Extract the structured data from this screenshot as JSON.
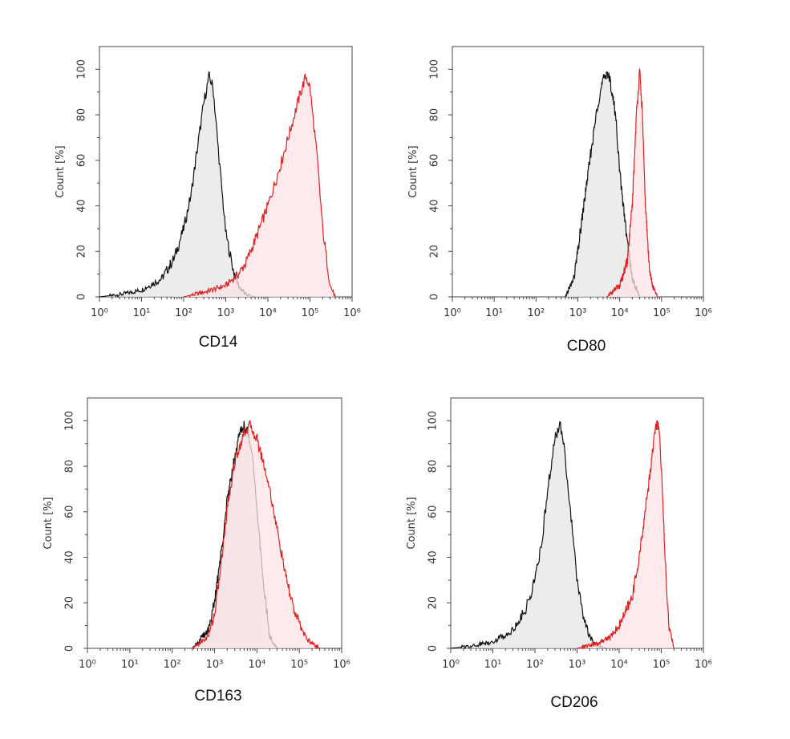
{
  "chart_data": [
    {
      "type": "area",
      "xlabel": "CD14",
      "ylabel": "Count [%]",
      "xscale": "log",
      "xlim": [
        1,
        1000000
      ],
      "ylim": [
        0,
        110
      ],
      "xticks": [
        1,
        10,
        100,
        1000,
        10000,
        100000,
        1000000
      ],
      "yticks": [
        0,
        20,
        40,
        60,
        80,
        100
      ],
      "series": [
        {
          "color": "#111111",
          "fill": "#e6e6e6",
          "x": [
            1,
            3,
            10,
            30,
            60,
            100,
            150,
            200,
            300,
            400,
            500,
            700,
            1000,
            1500,
            2000,
            3000,
            5000
          ],
          "y": [
            0,
            1,
            3,
            8,
            17,
            30,
            45,
            62,
            85,
            97,
            92,
            60,
            28,
            12,
            5,
            1,
            0
          ]
        },
        {
          "color": "#dd2222",
          "fill": "#fde3e6",
          "x": [
            100,
            300,
            1000,
            2000,
            3000,
            5000,
            10000,
            20000,
            40000,
            60000,
            80000,
            100000,
            150000,
            200000,
            300000,
            400000
          ],
          "y": [
            0,
            2,
            5,
            10,
            15,
            25,
            40,
            58,
            78,
            90,
            97,
            92,
            60,
            30,
            5,
            0
          ]
        }
      ]
    },
    {
      "type": "area",
      "xlabel": "CD80",
      "ylabel": "Count [%]",
      "xscale": "log",
      "xlim": [
        1,
        1000000
      ],
      "ylim": [
        0,
        110
      ],
      "xticks": [
        1,
        10,
        100,
        1000,
        10000,
        100000,
        1000000
      ],
      "yticks": [
        0,
        20,
        40,
        60,
        80,
        100
      ],
      "series": [
        {
          "color": "#111111",
          "fill": "#e6e6e6",
          "x": [
            500,
            800,
            1000,
            1500,
            2000,
            3000,
            4000,
            5000,
            6000,
            8000,
            10000,
            15000,
            20000,
            30000
          ],
          "y": [
            0,
            8,
            20,
            45,
            62,
            85,
            95,
            99,
            94,
            80,
            55,
            25,
            8,
            0
          ]
        },
        {
          "color": "#dd2222",
          "fill": "#fde3e6",
          "x": [
            5000,
            10000,
            15000,
            20000,
            25000,
            30000,
            35000,
            40000,
            50000,
            60000,
            80000
          ],
          "y": [
            0,
            5,
            15,
            40,
            80,
            99,
            80,
            45,
            15,
            5,
            0
          ]
        }
      ]
    },
    {
      "type": "area",
      "xlabel": "CD163",
      "ylabel": "Count [%]",
      "xscale": "log",
      "xlim": [
        1,
        1000000
      ],
      "ylim": [
        0,
        110
      ],
      "xticks": [
        1,
        10,
        100,
        1000,
        10000,
        100000,
        1000000
      ],
      "yticks": [
        0,
        20,
        40,
        60,
        80,
        100
      ],
      "series": [
        {
          "color": "#111111",
          "fill": "#e6e6e6",
          "x": [
            300,
            700,
            1000,
            1500,
            2000,
            3000,
            4000,
            5000,
            6000,
            8000,
            10000,
            15000,
            20000,
            30000
          ],
          "y": [
            0,
            8,
            20,
            45,
            65,
            85,
            95,
            98,
            95,
            85,
            60,
            25,
            5,
            0
          ]
        },
        {
          "color": "#dd2222",
          "fill": "#fde3e6",
          "x": [
            300,
            700,
            1000,
            1500,
            2000,
            3000,
            5000,
            7000,
            10000,
            15000,
            20000,
            30000,
            50000,
            80000,
            150000,
            300000
          ],
          "y": [
            0,
            5,
            15,
            40,
            62,
            82,
            95,
            98,
            92,
            80,
            70,
            52,
            30,
            15,
            4,
            0
          ]
        }
      ]
    },
    {
      "type": "area",
      "xlabel": "CD206",
      "ylabel": "Count [%]",
      "xscale": "log",
      "xlim": [
        1,
        1000000
      ],
      "ylim": [
        0,
        110
      ],
      "xticks": [
        1,
        10,
        100,
        1000,
        10000,
        100000,
        1000000
      ],
      "yticks": [
        0,
        20,
        40,
        60,
        80,
        100
      ],
      "series": [
        {
          "color": "#111111",
          "fill": "#e6e6e6",
          "x": [
            1,
            3,
            10,
            30,
            60,
            100,
            150,
            200,
            300,
            400,
            500,
            700,
            1000,
            1500,
            2000,
            3000,
            5000
          ],
          "y": [
            0,
            1,
            3,
            8,
            17,
            30,
            48,
            70,
            92,
            98,
            88,
            60,
            30,
            12,
            5,
            1,
            0
          ]
        },
        {
          "color": "#dd2222",
          "fill": "#fde3e6",
          "x": [
            1000,
            3000,
            6000,
            10000,
            20000,
            30000,
            50000,
            70000,
            80000,
            90000,
            100000,
            120000,
            150000,
            200000
          ],
          "y": [
            0,
            2,
            5,
            10,
            22,
            40,
            72,
            95,
            99,
            96,
            80,
            45,
            10,
            0
          ]
        }
      ]
    }
  ]
}
